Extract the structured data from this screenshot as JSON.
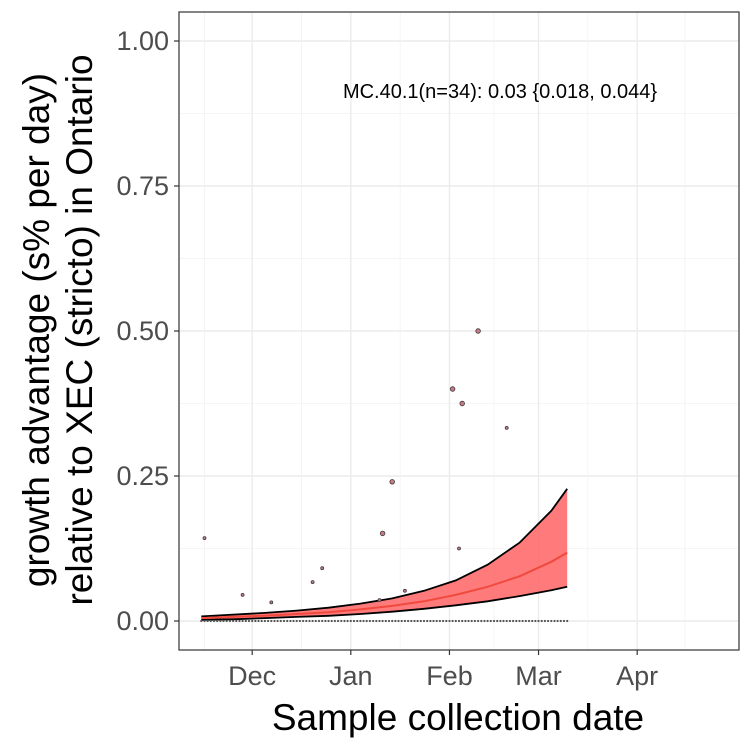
{
  "chart_data": {
    "type": "line",
    "title": "",
    "xlabel": "Sample collection date",
    "ylabel_line1": "growth advantage (s% per day)",
    "ylabel_line2": "relative to XEC (stricto) in Ontario",
    "annotation": "MC.40.1(n=34): 0.03 {0.018, 0.044}",
    "xlim": [
      "2024-11-08",
      "2025-05-03"
    ],
    "ylim": [
      -0.05,
      1.05
    ],
    "x_ticks": [
      {
        "label": "Dec",
        "date": "2024-12-01"
      },
      {
        "label": "Jan",
        "date": "2025-01-01"
      },
      {
        "label": "Feb",
        "date": "2025-02-01"
      },
      {
        "label": "Mar",
        "date": "2025-03-01"
      },
      {
        "label": "Apr",
        "date": "2025-04-01"
      }
    ],
    "y_ticks": [
      {
        "label": "0.00",
        "value": 0
      },
      {
        "label": "0.25",
        "value": 0.25
      },
      {
        "label": "0.50",
        "value": 0.5
      },
      {
        "label": "0.75",
        "value": 0.75
      },
      {
        "label": "1.00",
        "value": 1.0
      }
    ],
    "grid": true,
    "colors": {
      "fit": "#f04a3e",
      "ribbon": "#ff6b6b",
      "bound": "#000000",
      "point_fill": "#c77a86",
      "point_stroke": "#3a3a3a"
    },
    "fit": {
      "dates": [
        "2024-11-15",
        "2024-11-25",
        "2024-12-05",
        "2024-12-15",
        "2024-12-25",
        "2025-01-04",
        "2025-01-14",
        "2025-01-24",
        "2025-02-03",
        "2025-02-13",
        "2025-02-23",
        "2025-03-05",
        "2025-03-10"
      ],
      "mean": [
        0.005,
        0.007,
        0.009,
        0.012,
        0.015,
        0.02,
        0.026,
        0.034,
        0.045,
        0.059,
        0.077,
        0.102,
        0.118
      ],
      "lower": [
        0.002,
        0.003,
        0.005,
        0.007,
        0.009,
        0.012,
        0.016,
        0.021,
        0.027,
        0.034,
        0.043,
        0.053,
        0.059
      ],
      "upper": [
        0.008,
        0.011,
        0.014,
        0.018,
        0.023,
        0.03,
        0.039,
        0.052,
        0.07,
        0.097,
        0.135,
        0.19,
        0.228
      ]
    },
    "points": [
      {
        "date": "2024-11-16",
        "value": 0.143,
        "size": 1
      },
      {
        "date": "2024-11-28",
        "value": 0.045,
        "size": 1
      },
      {
        "date": "2024-12-07",
        "value": 0.032,
        "size": 1
      },
      {
        "date": "2024-12-20",
        "value": 0.067,
        "size": 1
      },
      {
        "date": "2024-12-23",
        "value": 0.091,
        "size": 1
      },
      {
        "date": "2025-01-10",
        "value": 0.036,
        "size": 1
      },
      {
        "date": "2025-01-11",
        "value": 0.151,
        "size": 2
      },
      {
        "date": "2025-01-14",
        "value": 0.24,
        "size": 2
      },
      {
        "date": "2025-01-18",
        "value": 0.052,
        "size": 1
      },
      {
        "date": "2025-02-02",
        "value": 0.4,
        "size": 2
      },
      {
        "date": "2025-02-04",
        "value": 0.125,
        "size": 1
      },
      {
        "date": "2025-02-05",
        "value": 0.375,
        "size": 2
      },
      {
        "date": "2025-02-10",
        "value": 0.5,
        "size": 2
      },
      {
        "date": "2025-02-19",
        "value": 0.333,
        "size": 1
      }
    ],
    "zero_points": {
      "start": "2024-11-15",
      "end": "2025-03-10",
      "step_days": 1,
      "value": 0
    }
  }
}
